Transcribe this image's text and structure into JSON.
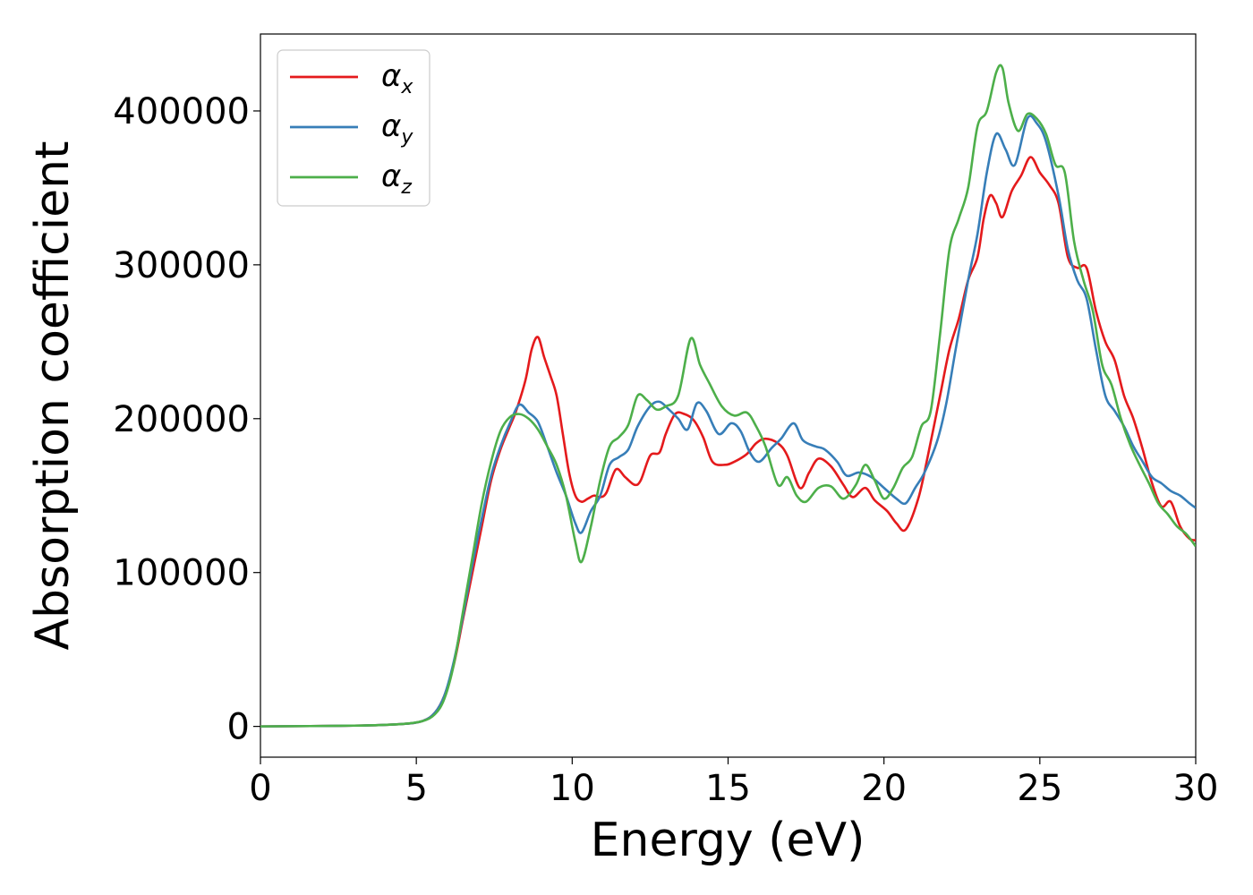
{
  "chart_data": {
    "type": "line",
    "title": "",
    "xlabel": "Energy (eV)",
    "ylabel": "Absorption coefficient",
    "xlim": [
      0,
      30
    ],
    "ylim": [
      -20000,
      450000
    ],
    "xticks": [
      "0",
      "5",
      "10",
      "15",
      "20",
      "25",
      "30"
    ],
    "yticks": [
      "0",
      "100000",
      "200000",
      "300000",
      "400000"
    ],
    "grid": false,
    "legend_position": "top-left",
    "series": [
      {
        "name": "α_x",
        "base": "α",
        "sub": "x",
        "color": "#e41a1c",
        "points": [
          [
            0,
            0
          ],
          [
            3,
            500
          ],
          [
            4.5,
            1500
          ],
          [
            5.2,
            3500
          ],
          [
            5.6,
            9000
          ],
          [
            5.9,
            20000
          ],
          [
            6.2,
            40000
          ],
          [
            6.5,
            70000
          ],
          [
            6.8,
            100000
          ],
          [
            7.1,
            130000
          ],
          [
            7.4,
            160000
          ],
          [
            7.7,
            180000
          ],
          [
            8.0,
            195000
          ],
          [
            8.2,
            205000
          ],
          [
            8.5,
            225000
          ],
          [
            8.7,
            245000
          ],
          [
            8.9,
            253000
          ],
          [
            9.1,
            240000
          ],
          [
            9.3,
            228000
          ],
          [
            9.5,
            215000
          ],
          [
            9.7,
            190000
          ],
          [
            9.9,
            165000
          ],
          [
            10.1,
            150000
          ],
          [
            10.3,
            146000
          ],
          [
            10.5,
            148000
          ],
          [
            10.7,
            150000
          ],
          [
            10.9,
            149000
          ],
          [
            11.1,
            152000
          ],
          [
            11.4,
            167000
          ],
          [
            11.7,
            162000
          ],
          [
            12.0,
            157000
          ],
          [
            12.2,
            160000
          ],
          [
            12.5,
            176000
          ],
          [
            12.8,
            178000
          ],
          [
            13.0,
            190000
          ],
          [
            13.3,
            203000
          ],
          [
            13.6,
            203000
          ],
          [
            13.9,
            199000
          ],
          [
            14.2,
            188000
          ],
          [
            14.5,
            172000
          ],
          [
            14.9,
            170000
          ],
          [
            15.2,
            172000
          ],
          [
            15.6,
            177000
          ],
          [
            15.9,
            184000
          ],
          [
            16.2,
            187000
          ],
          [
            16.6,
            184000
          ],
          [
            16.9,
            176000
          ],
          [
            17.3,
            155000
          ],
          [
            17.6,
            165000
          ],
          [
            17.9,
            174000
          ],
          [
            18.3,
            169000
          ],
          [
            18.7,
            157000
          ],
          [
            19.0,
            149000
          ],
          [
            19.4,
            155000
          ],
          [
            19.7,
            147000
          ],
          [
            20.1,
            140000
          ],
          [
            20.4,
            132000
          ],
          [
            20.7,
            128000
          ],
          [
            21.1,
            148000
          ],
          [
            21.4,
            175000
          ],
          [
            21.8,
            215000
          ],
          [
            22.1,
            245000
          ],
          [
            22.4,
            265000
          ],
          [
            22.7,
            290000
          ],
          [
            23.0,
            305000
          ],
          [
            23.2,
            330000
          ],
          [
            23.4,
            345000
          ],
          [
            23.6,
            340000
          ],
          [
            23.8,
            331000
          ],
          [
            24.1,
            348000
          ],
          [
            24.4,
            358000
          ],
          [
            24.7,
            370000
          ],
          [
            25.0,
            360000
          ],
          [
            25.3,
            352000
          ],
          [
            25.6,
            340000
          ],
          [
            25.9,
            305000
          ],
          [
            26.2,
            298000
          ],
          [
            26.5,
            298000
          ],
          [
            26.8,
            270000
          ],
          [
            27.1,
            250000
          ],
          [
            27.4,
            238000
          ],
          [
            27.7,
            215000
          ],
          [
            28.0,
            200000
          ],
          [
            28.3,
            180000
          ],
          [
            28.6,
            158000
          ],
          [
            28.9,
            143000
          ],
          [
            29.2,
            146000
          ],
          [
            29.5,
            130000
          ],
          [
            29.8,
            122000
          ],
          [
            30,
            121000
          ]
        ]
      },
      {
        "name": "α_y",
        "base": "α",
        "sub": "y",
        "color": "#377eb8",
        "points": [
          [
            0,
            0
          ],
          [
            3,
            500
          ],
          [
            4.5,
            1500
          ],
          [
            5.2,
            3500
          ],
          [
            5.6,
            9000
          ],
          [
            5.9,
            20000
          ],
          [
            6.2,
            42000
          ],
          [
            6.5,
            72000
          ],
          [
            6.8,
            105000
          ],
          [
            7.1,
            135000
          ],
          [
            7.4,
            163000
          ],
          [
            7.7,
            182000
          ],
          [
            8.0,
            197000
          ],
          [
            8.3,
            209000
          ],
          [
            8.6,
            204000
          ],
          [
            8.9,
            198000
          ],
          [
            9.2,
            182000
          ],
          [
            9.5,
            165000
          ],
          [
            9.8,
            150000
          ],
          [
            10.1,
            132000
          ],
          [
            10.3,
            126000
          ],
          [
            10.6,
            140000
          ],
          [
            10.9,
            150000
          ],
          [
            11.2,
            170000
          ],
          [
            11.5,
            175000
          ],
          [
            11.8,
            180000
          ],
          [
            12.1,
            195000
          ],
          [
            12.5,
            208000
          ],
          [
            12.8,
            211000
          ],
          [
            13.1,
            206000
          ],
          [
            13.4,
            200000
          ],
          [
            13.7,
            193000
          ],
          [
            14.0,
            210000
          ],
          [
            14.3,
            205000
          ],
          [
            14.7,
            190000
          ],
          [
            15.1,
            197000
          ],
          [
            15.4,
            192000
          ],
          [
            15.7,
            178000
          ],
          [
            16.0,
            172000
          ],
          [
            16.4,
            181000
          ],
          [
            16.7,
            187000
          ],
          [
            17.1,
            197000
          ],
          [
            17.4,
            186000
          ],
          [
            17.8,
            182000
          ],
          [
            18.1,
            180000
          ],
          [
            18.5,
            172000
          ],
          [
            18.8,
            163000
          ],
          [
            19.2,
            165000
          ],
          [
            19.6,
            162000
          ],
          [
            20.0,
            155000
          ],
          [
            20.4,
            148000
          ],
          [
            20.7,
            145000
          ],
          [
            21.0,
            155000
          ],
          [
            21.3,
            165000
          ],
          [
            21.7,
            185000
          ],
          [
            22.0,
            210000
          ],
          [
            22.3,
            245000
          ],
          [
            22.7,
            290000
          ],
          [
            23.0,
            320000
          ],
          [
            23.3,
            360000
          ],
          [
            23.6,
            385000
          ],
          [
            23.9,
            375000
          ],
          [
            24.2,
            365000
          ],
          [
            24.6,
            395000
          ],
          [
            24.9,
            392000
          ],
          [
            25.2,
            380000
          ],
          [
            25.6,
            345000
          ],
          [
            25.9,
            310000
          ],
          [
            26.2,
            290000
          ],
          [
            26.5,
            278000
          ],
          [
            26.8,
            245000
          ],
          [
            27.1,
            215000
          ],
          [
            27.4,
            205000
          ],
          [
            27.7,
            195000
          ],
          [
            28.0,
            182000
          ],
          [
            28.3,
            172000
          ],
          [
            28.6,
            162000
          ],
          [
            28.9,
            158000
          ],
          [
            29.2,
            153000
          ],
          [
            29.5,
            150000
          ],
          [
            29.8,
            145000
          ],
          [
            30,
            142000
          ]
        ]
      },
      {
        "name": "α_z",
        "base": "α",
        "sub": "z",
        "color": "#4daf4a",
        "points": [
          [
            0,
            0
          ],
          [
            3,
            500
          ],
          [
            4.5,
            1500
          ],
          [
            5.2,
            3500
          ],
          [
            5.6,
            8000
          ],
          [
            5.9,
            18000
          ],
          [
            6.2,
            40000
          ],
          [
            6.5,
            75000
          ],
          [
            6.8,
            110000
          ],
          [
            7.1,
            145000
          ],
          [
            7.4,
            172000
          ],
          [
            7.7,
            192000
          ],
          [
            8.0,
            201000
          ],
          [
            8.3,
            203000
          ],
          [
            8.6,
            200000
          ],
          [
            8.9,
            193000
          ],
          [
            9.2,
            182000
          ],
          [
            9.5,
            170000
          ],
          [
            9.8,
            150000
          ],
          [
            10.1,
            120000
          ],
          [
            10.3,
            107000
          ],
          [
            10.6,
            130000
          ],
          [
            10.9,
            160000
          ],
          [
            11.2,
            182000
          ],
          [
            11.5,
            188000
          ],
          [
            11.8,
            196000
          ],
          [
            12.1,
            215000
          ],
          [
            12.4,
            212000
          ],
          [
            12.7,
            206000
          ],
          [
            13.0,
            208000
          ],
          [
            13.4,
            215000
          ],
          [
            13.8,
            252000
          ],
          [
            14.1,
            235000
          ],
          [
            14.4,
            223000
          ],
          [
            14.8,
            208000
          ],
          [
            15.2,
            202000
          ],
          [
            15.6,
            204000
          ],
          [
            15.9,
            195000
          ],
          [
            16.2,
            182000
          ],
          [
            16.6,
            157000
          ],
          [
            16.9,
            162000
          ],
          [
            17.2,
            150000
          ],
          [
            17.5,
            146000
          ],
          [
            17.9,
            155000
          ],
          [
            18.3,
            156000
          ],
          [
            18.7,
            148000
          ],
          [
            19.1,
            157000
          ],
          [
            19.4,
            170000
          ],
          [
            19.7,
            160000
          ],
          [
            20.0,
            148000
          ],
          [
            20.3,
            155000
          ],
          [
            20.6,
            168000
          ],
          [
            20.9,
            175000
          ],
          [
            21.2,
            195000
          ],
          [
            21.5,
            205000
          ],
          [
            21.8,
            255000
          ],
          [
            22.1,
            310000
          ],
          [
            22.4,
            330000
          ],
          [
            22.7,
            350000
          ],
          [
            23.0,
            390000
          ],
          [
            23.3,
            400000
          ],
          [
            23.6,
            425000
          ],
          [
            23.8,
            428000
          ],
          [
            24.0,
            405000
          ],
          [
            24.3,
            387000
          ],
          [
            24.6,
            398000
          ],
          [
            24.9,
            395000
          ],
          [
            25.2,
            385000
          ],
          [
            25.5,
            365000
          ],
          [
            25.8,
            360000
          ],
          [
            26.1,
            315000
          ],
          [
            26.4,
            290000
          ],
          [
            26.7,
            270000
          ],
          [
            27.0,
            235000
          ],
          [
            27.3,
            222000
          ],
          [
            27.6,
            200000
          ],
          [
            27.9,
            183000
          ],
          [
            28.2,
            170000
          ],
          [
            28.5,
            158000
          ],
          [
            28.8,
            145000
          ],
          [
            29.1,
            138000
          ],
          [
            29.4,
            130000
          ],
          [
            29.7,
            125000
          ],
          [
            30,
            117000
          ]
        ]
      }
    ]
  }
}
